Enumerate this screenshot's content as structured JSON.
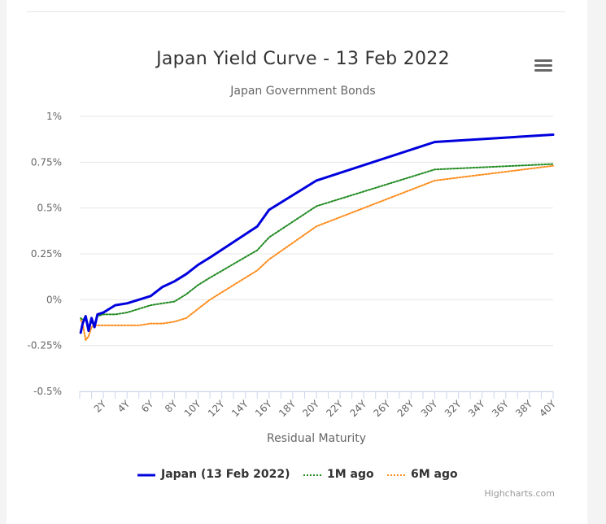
{
  "chart_data": {
    "type": "line",
    "title": "Japan Yield Curve - 13 Feb 2022",
    "subtitle": "Japan Government Bonds",
    "xlabel": "Residual Maturity",
    "ylabel": "",
    "xlim": [
      0,
      40
    ],
    "ylim": [
      -0.5,
      1
    ],
    "x_tick_labels": [
      "2Y",
      "4Y",
      "6Y",
      "8Y",
      "10Y",
      "12Y",
      "14Y",
      "16Y",
      "18Y",
      "20Y",
      "22Y",
      "24Y",
      "26Y",
      "28Y",
      "30Y",
      "32Y",
      "34Y",
      "36Y",
      "38Y",
      "40Y"
    ],
    "x_tick_values": [
      2,
      4,
      6,
      8,
      10,
      12,
      14,
      16,
      18,
      20,
      22,
      24,
      26,
      28,
      30,
      32,
      34,
      36,
      38,
      40
    ],
    "y_tick_labels": [
      "-0.5%",
      "-0.25%",
      "0%",
      "0.25%",
      "0.5%",
      "0.75%",
      "1%"
    ],
    "y_tick_values": [
      -0.5,
      -0.25,
      0,
      0.25,
      0.5,
      0.75,
      1
    ],
    "grid": "horizontal",
    "legend_position": "bottom",
    "series": [
      {
        "name": "Japan (13 Feb 2022)",
        "color": "#0000dd",
        "dash": "solid",
        "points": [
          [
            0.08,
            -0.18
          ],
          [
            0.25,
            -0.13
          ],
          [
            0.5,
            -0.09
          ],
          [
            0.75,
            -0.17
          ],
          [
            1,
            -0.1
          ],
          [
            1.25,
            -0.15
          ],
          [
            1.5,
            -0.08
          ],
          [
            2,
            -0.07
          ],
          [
            3,
            -0.03
          ],
          [
            4,
            -0.02
          ],
          [
            5,
            0
          ],
          [
            6,
            0.02
          ],
          [
            7,
            0.07
          ],
          [
            8,
            0.1
          ],
          [
            9,
            0.14
          ],
          [
            10,
            0.19
          ],
          [
            11,
            0.23
          ],
          [
            15,
            0.4
          ],
          [
            16,
            0.49
          ],
          [
            20,
            0.65
          ],
          [
            30,
            0.86
          ],
          [
            40,
            0.9
          ]
        ]
      },
      {
        "name": "1M ago",
        "color": "#228b22",
        "dash": "dotted",
        "points": [
          [
            0.08,
            -0.1
          ],
          [
            0.25,
            -0.11
          ],
          [
            0.5,
            -0.1
          ],
          [
            0.75,
            -0.16
          ],
          [
            1,
            -0.12
          ],
          [
            1.25,
            -0.14
          ],
          [
            1.5,
            -0.09
          ],
          [
            2,
            -0.08
          ],
          [
            3,
            -0.08
          ],
          [
            4,
            -0.07
          ],
          [
            5,
            -0.05
          ],
          [
            6,
            -0.03
          ],
          [
            7,
            -0.02
          ],
          [
            8,
            -0.01
          ],
          [
            9,
            0.03
          ],
          [
            10,
            0.08
          ],
          [
            11,
            0.12
          ],
          [
            15,
            0.27
          ],
          [
            16,
            0.34
          ],
          [
            20,
            0.51
          ],
          [
            30,
            0.71
          ],
          [
            40,
            0.74
          ]
        ]
      },
      {
        "name": "6M ago",
        "color": "#ff8c1a",
        "dash": "dotted",
        "points": [
          [
            0.08,
            -0.11
          ],
          [
            0.25,
            -0.13
          ],
          [
            0.5,
            -0.22
          ],
          [
            0.75,
            -0.2
          ],
          [
            1,
            -0.15
          ],
          [
            1.25,
            -0.14
          ],
          [
            1.5,
            -0.14
          ],
          [
            2,
            -0.14
          ],
          [
            3,
            -0.14
          ],
          [
            4,
            -0.14
          ],
          [
            5,
            -0.14
          ],
          [
            6,
            -0.13
          ],
          [
            7,
            -0.13
          ],
          [
            8,
            -0.12
          ],
          [
            9,
            -0.1
          ],
          [
            10,
            -0.05
          ],
          [
            11,
            0
          ],
          [
            15,
            0.16
          ],
          [
            16,
            0.22
          ],
          [
            20,
            0.4
          ],
          [
            30,
            0.65
          ],
          [
            40,
            0.73
          ]
        ]
      }
    ]
  },
  "ui": {
    "menu_icon": "hamburger-menu-icon",
    "credits": "Highcharts.com"
  }
}
